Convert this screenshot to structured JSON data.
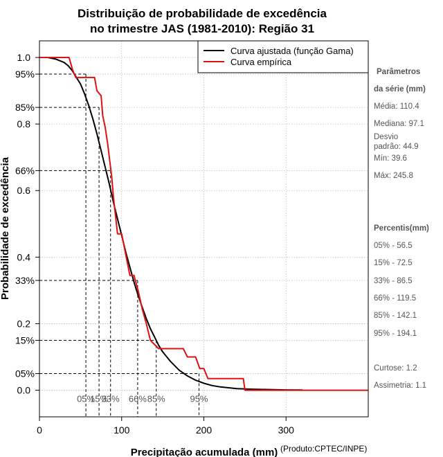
{
  "chart_data": {
    "type": "line",
    "title_line1": "Distribuição de probabilidade de excedência",
    "title_line2": "no trimestre JAS (1981-2010): Região 31",
    "xlabel": "Precipitação acumulada (mm)",
    "ylabel": "Probabilidade de excedência",
    "credit": "(Produto:CPTEC/INPE)",
    "xlim": [
      0,
      400
    ],
    "ylim": [
      -0.08,
      1.05
    ],
    "x_ticks": [
      0,
      100,
      200,
      300
    ],
    "x_tick_labels": [
      "0",
      "100",
      "200",
      "300"
    ],
    "y_ticks": [
      0.0,
      0.2,
      0.4,
      0.6,
      0.8,
      1.0
    ],
    "y_tick_labels": [
      "0.0",
      "0.2",
      "0.4",
      "0.6",
      "0.8",
      "1.0"
    ],
    "y_pct_ticks": [
      0.05,
      0.15,
      0.33,
      0.66,
      0.85,
      0.95
    ],
    "y_pct_labels": [
      "05%",
      "15%",
      "33%",
      "66%",
      "85%",
      "95%"
    ],
    "grid": true,
    "legend_position": "top-right",
    "series": [
      {
        "name": "Curva ajustada (função Gama)",
        "color": "#000000",
        "x": [
          0,
          10,
          20,
          30,
          35,
          40,
          45,
          50,
          55,
          60,
          65,
          70,
          75,
          80,
          85,
          90,
          95,
          100,
          105,
          110,
          115,
          120,
          125,
          130,
          135,
          140,
          145,
          150,
          160,
          170,
          180,
          190,
          200,
          210,
          220,
          240,
          260,
          280,
          300,
          320
        ],
        "y": [
          1.0,
          1.0,
          0.995,
          0.985,
          0.975,
          0.96,
          0.94,
          0.92,
          0.89,
          0.855,
          0.815,
          0.77,
          0.72,
          0.67,
          0.62,
          0.565,
          0.515,
          0.465,
          0.415,
          0.37,
          0.325,
          0.285,
          0.25,
          0.215,
          0.185,
          0.16,
          0.135,
          0.115,
          0.085,
          0.06,
          0.043,
          0.03,
          0.021,
          0.014,
          0.01,
          0.005,
          0.003,
          0.002,
          0.001,
          0.0005
        ]
      },
      {
        "name": "Curva empírica",
        "color": "#e01010",
        "x": [
          0,
          36,
          40,
          44,
          67,
          70,
          75,
          77,
          80,
          83,
          86,
          88,
          90,
          95,
          100,
          110,
          115,
          120,
          125,
          130,
          135,
          145,
          150,
          155,
          175,
          180,
          190,
          195,
          200,
          205,
          248,
          250,
          400
        ],
        "y": [
          1.0,
          1.0,
          0.965,
          0.94,
          0.94,
          0.9,
          0.885,
          0.825,
          0.79,
          0.74,
          0.68,
          0.64,
          0.58,
          0.47,
          0.47,
          0.345,
          0.345,
          0.3,
          0.245,
          0.2,
          0.15,
          0.125,
          0.125,
          0.125,
          0.125,
          0.1,
          0.1,
          0.065,
          0.065,
          0.035,
          0.035,
          0.0,
          0.0
        ]
      }
    ],
    "percentiles": {
      "values_mm": [
        56.5,
        72.5,
        86.5,
        119.5,
        142.1,
        194.1
      ],
      "probabilities": [
        0.95,
        0.85,
        0.66,
        0.33,
        0.15,
        0.05
      ],
      "labels": [
        "05%",
        "15%",
        "33%",
        "66%",
        "85%",
        "95%"
      ]
    }
  },
  "params": {
    "heading1": "Parâmetros",
    "heading2": "da série (mm)",
    "media": "Média: 110.4",
    "mediana": "Mediana: 97.1",
    "desvio1": "Desvio",
    "desvio2": "padrão: 44.9",
    "min": "Mín: 39.6",
    "max": "Máx: 245.8",
    "perc_heading": "Percentis(mm)",
    "p05": "05% - 56.5",
    "p15": "15% - 72.5",
    "p33": "33% - 86.5",
    "p66": "66% - 119.5",
    "p85": "85% - 142.1",
    "p95": "95% - 194.1",
    "curtose": "Curtose: 1.2",
    "assimetria": "Assimetria: 1.1"
  }
}
